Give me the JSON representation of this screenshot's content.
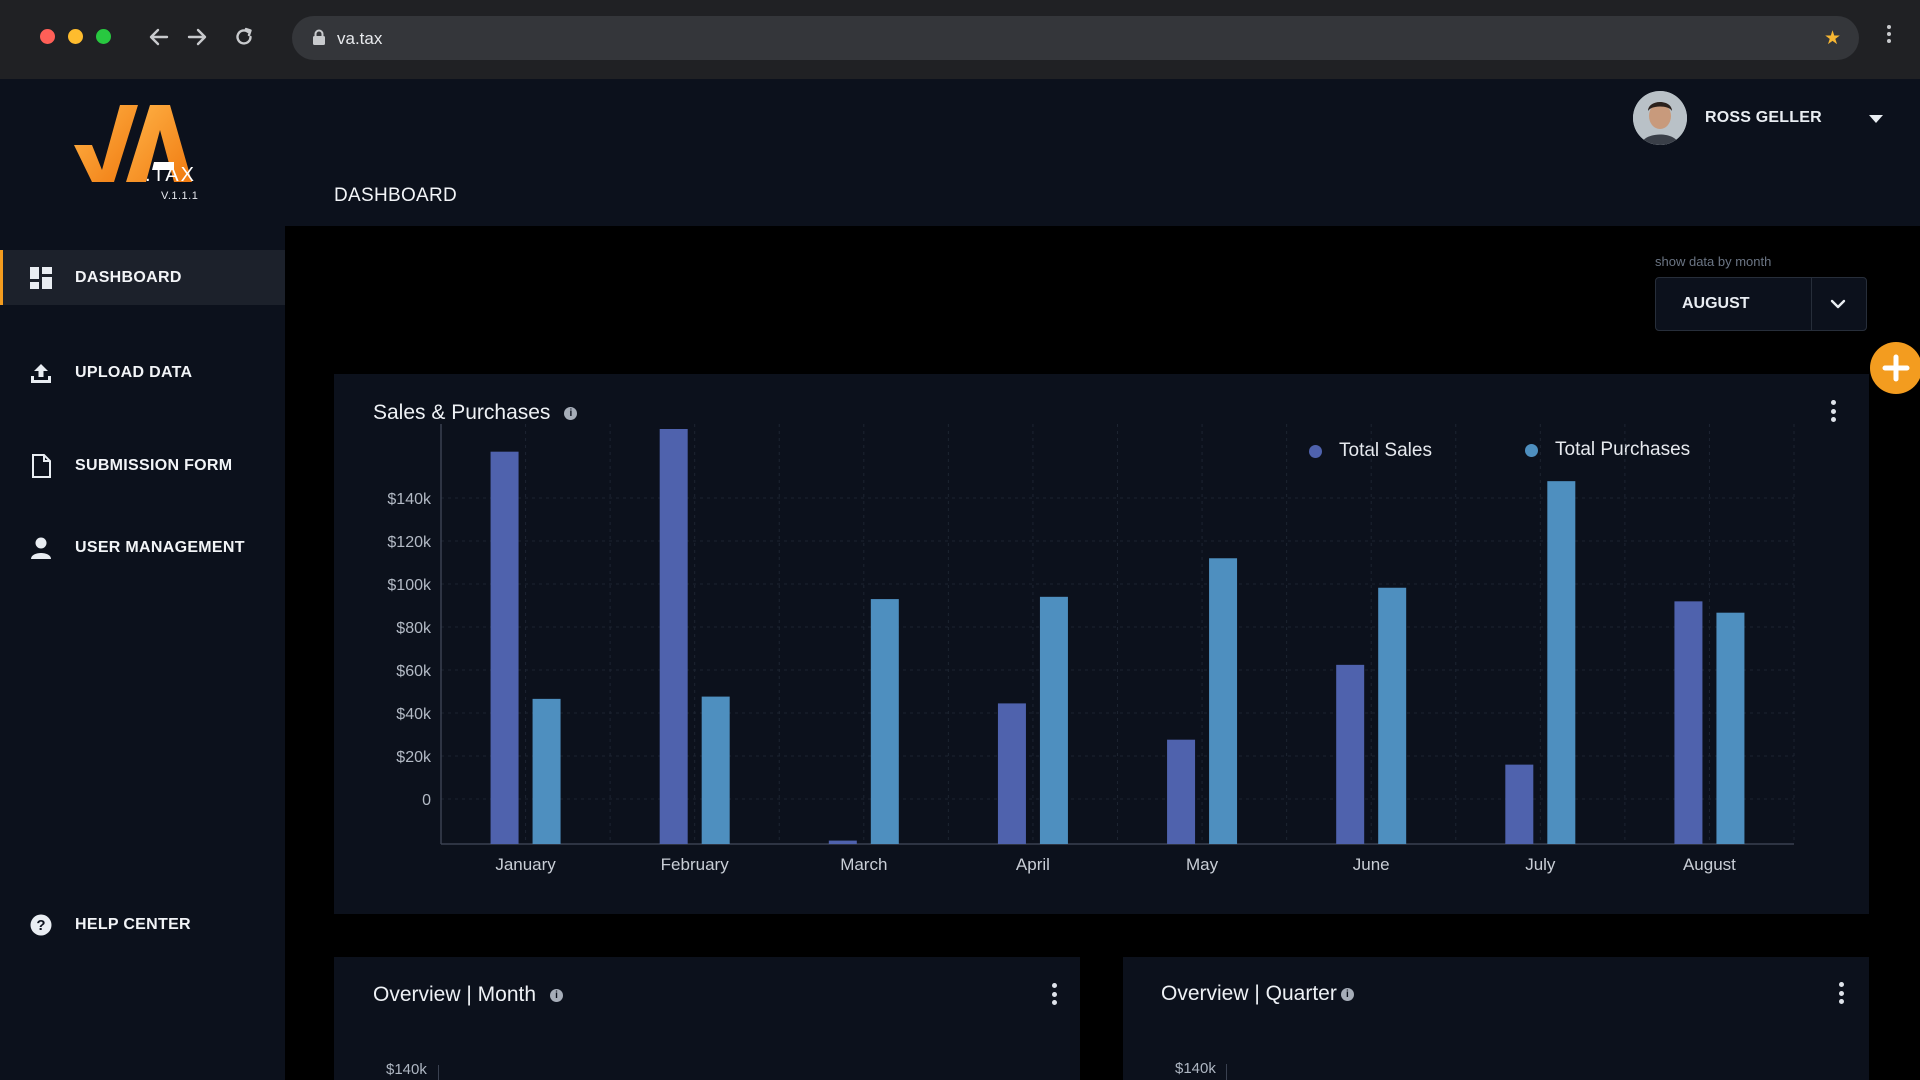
{
  "browser": {
    "url": "va.tax",
    "back_icon": "arrow-left-icon",
    "forward_icon": "arrow-right-icon",
    "reload_icon": "reload-icon",
    "bookmark_icon": "star-icon"
  },
  "brand": {
    "logo_text": "VA",
    "logo_suffix": ".TAX",
    "version": "V.1.1.1",
    "accent_color": "#f39c1f"
  },
  "sidebar": {
    "items": [
      {
        "label": "DASHBOARD",
        "icon": "dashboard-grid-icon",
        "active": true
      },
      {
        "label": "UPLOAD DATA",
        "icon": "upload-icon",
        "active": false
      },
      {
        "label": "SUBMISSION FORM",
        "icon": "document-icon",
        "active": false
      },
      {
        "label": "USER MANAGEMENT",
        "icon": "user-icon",
        "active": false
      }
    ],
    "help": {
      "label": "HELP CENTER",
      "icon": "help-circle-icon"
    }
  },
  "header": {
    "page_title": "DASHBOARD",
    "user_name": "ROSS GELLER"
  },
  "filter": {
    "label": "show data by month",
    "selected": "AUGUST"
  },
  "cards": {
    "sales": {
      "title": "Sales & Purchases"
    },
    "month": {
      "title": "Overview | Month",
      "first_tick": "$140k"
    },
    "quarter": {
      "title": "Overview | Quarter",
      "first_tick": "$140k"
    }
  },
  "chart_data": {
    "type": "bar",
    "title": "Sales & Purchases",
    "categories": [
      "January",
      "February",
      "March",
      "April",
      "May",
      "June",
      "July",
      "August"
    ],
    "series": [
      {
        "name": "Total Sales",
        "color": "#4f62ad",
        "values": [
          173000,
          183000,
          1500,
          62000,
          46000,
          79000,
          35000,
          107000
        ]
      },
      {
        "name": "Total Purchases",
        "color": "#4e8fbf",
        "values": [
          64000,
          65000,
          108000,
          109000,
          126000,
          113000,
          160000,
          102000
        ]
      }
    ],
    "yticks": [
      "$140k",
      "$120k",
      "$100k",
      "$80k",
      "$60k",
      "$40k",
      "$20k",
      "0"
    ],
    "grid": true,
    "legend": "top-right"
  }
}
